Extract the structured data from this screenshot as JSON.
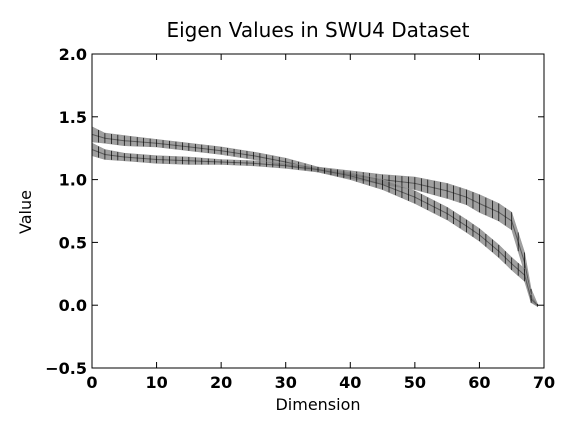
{
  "chart_data": {
    "type": "line",
    "title": "Eigen Values in SWU4 Dataset",
    "xlabel": "Dimension",
    "ylabel": "Value",
    "xlim": [
      0,
      70
    ],
    "ylim": [
      -0.5,
      2.0
    ],
    "x_ticks": [
      "0",
      "10",
      "20",
      "30",
      "40",
      "50",
      "60",
      "70"
    ],
    "y_ticks": [
      "2.0",
      "1.5",
      "1.0",
      "0.5",
      "0.0",
      "−0.5"
    ],
    "grid": false,
    "legend": "none",
    "series_color": "#808080",
    "errorbar_color": "#000000",
    "series": [
      {
        "x": [
          0,
          2,
          5,
          10,
          15,
          20,
          25,
          30,
          35,
          40,
          45,
          50,
          55,
          58,
          60,
          63,
          65,
          67,
          68,
          69
        ],
        "values": [
          1.36,
          1.33,
          1.31,
          1.29,
          1.26,
          1.23,
          1.19,
          1.14,
          1.08,
          1.04,
          1.0,
          0.97,
          0.91,
          0.86,
          0.81,
          0.74,
          0.67,
          0.34,
          0.08,
          0.0
        ],
        "err": [
          0.06,
          0.04,
          0.04,
          0.03,
          0.03,
          0.03,
          0.03,
          0.03,
          0.02,
          0.03,
          0.04,
          0.05,
          0.06,
          0.06,
          0.07,
          0.07,
          0.07,
          0.08,
          0.05,
          0.01
        ]
      },
      {
        "x": [
          0,
          2,
          5,
          10,
          15,
          20,
          25,
          30,
          35,
          40,
          45,
          50,
          55,
          58,
          60,
          63,
          65,
          67,
          68,
          69
        ],
        "values": [
          1.24,
          1.2,
          1.18,
          1.16,
          1.15,
          1.14,
          1.13,
          1.11,
          1.08,
          1.03,
          0.96,
          0.86,
          0.73,
          0.63,
          0.56,
          0.43,
          0.33,
          0.24,
          0.05,
          0.0
        ],
        "err": [
          0.05,
          0.04,
          0.03,
          0.03,
          0.03,
          0.02,
          0.02,
          0.02,
          0.02,
          0.03,
          0.04,
          0.05,
          0.05,
          0.05,
          0.05,
          0.05,
          0.05,
          0.05,
          0.03,
          0.01
        ]
      }
    ]
  }
}
